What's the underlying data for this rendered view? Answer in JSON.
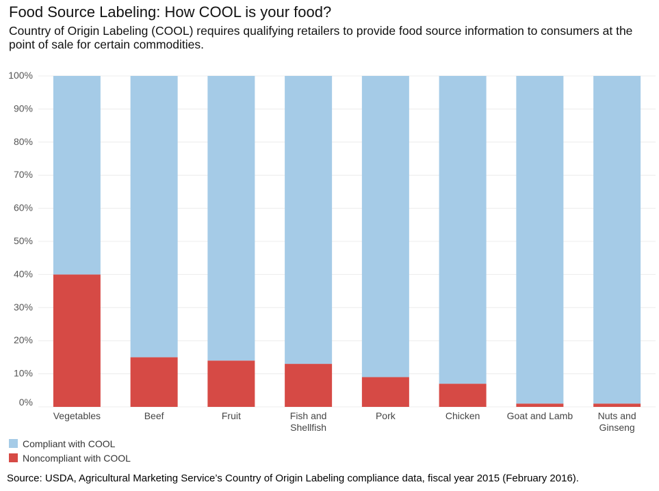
{
  "title": "Food Source Labeling: How COOL is your food?",
  "subtitle": "Country of Origin Labeling (COOL) requires qualifying retailers to provide food source information to consumers at the point of sale for certain commodities.",
  "source": "Source: USDA, Agricultural Marketing Service’s Country of Origin Labeling compliance data, fiscal year 2015 (February 2016).",
  "colors": {
    "compliant": "#a5cbe7",
    "noncompliant": "#d64a45"
  },
  "chart_data": {
    "type": "bar",
    "stacked": true,
    "title": "Food Source Labeling: How COOL is your food?",
    "xlabel": "",
    "ylabel": "",
    "ylim": [
      0,
      100
    ],
    "yticks": [
      "0%",
      "10%",
      "20%",
      "30%",
      "40%",
      "50%",
      "60%",
      "70%",
      "80%",
      "90%",
      "100%"
    ],
    "categories": [
      [
        "Vegetables"
      ],
      [
        "Beef"
      ],
      [
        "Fruit"
      ],
      [
        "Fish and",
        "Shellfish"
      ],
      [
        "Pork"
      ],
      [
        "Chicken"
      ],
      [
        "Goat and Lamb"
      ],
      [
        "Nuts and",
        "Ginseng"
      ]
    ],
    "series": [
      {
        "name": "Noncompliant with COOL",
        "values": [
          40,
          15,
          14,
          13,
          9,
          7,
          1,
          1
        ]
      },
      {
        "name": "Compliant with COOL",
        "values": [
          60,
          85,
          86,
          87,
          91,
          93,
          99,
          99
        ]
      }
    ],
    "grid": true,
    "legend": "bottom-left"
  },
  "legend": [
    {
      "label": "Compliant with COOL",
      "color": "#a5cbe7"
    },
    {
      "label": "Noncompliant with COOL",
      "color": "#d64a45"
    }
  ]
}
